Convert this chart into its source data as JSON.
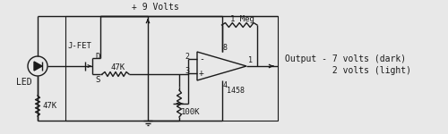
{
  "bg_color": "#e8e8e8",
  "line_color": "#1a1a1a",
  "text_color": "#1a1a1a",
  "output_text_line1": "Output - 7 volts (dark)",
  "output_text_line2": "         2 volts (light)",
  "label_jfet": "J-FET",
  "label_led": "LED",
  "label_d": "D",
  "label_s": "S",
  "label_47k_res": "47K",
  "label_47k_bot": "47K",
  "label_100k": "100K",
  "label_1meg": "1 Meg",
  "label_9v": "+ 9 Volts",
  "label_2": "2",
  "label_3": "3",
  "label_8": "8",
  "label_4": "4",
  "label_1": "1",
  "label_1458": "1458"
}
